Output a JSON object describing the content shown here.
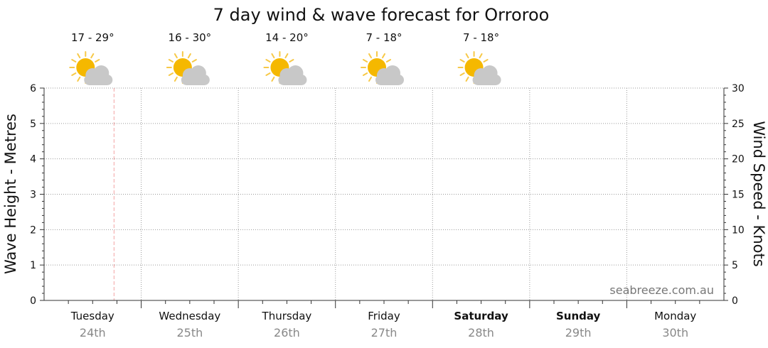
{
  "chart_data": {
    "type": "line",
    "title": "7 day wind & wave forecast for Orroroo",
    "ylabel_left": "Wave Height - Metres",
    "ylabel_right": "Wind Speed - Knots",
    "ylim_left": [
      0,
      6
    ],
    "ylim_right": [
      0,
      30
    ],
    "yticks_left": [
      "0",
      "1",
      "2",
      "3",
      "4",
      "5",
      "6"
    ],
    "yticks_right": [
      "0",
      "5",
      "10",
      "15",
      "20",
      "25",
      "30"
    ],
    "grid": true,
    "days": [
      {
        "name": "Tuesday",
        "date": "24th",
        "weekend": false,
        "temp": "17 - 29°",
        "icon": "sun-cloud-icon"
      },
      {
        "name": "Wednesday",
        "date": "25th",
        "weekend": false,
        "temp": "16 - 30°",
        "icon": "sun-cloud-icon"
      },
      {
        "name": "Thursday",
        "date": "26th",
        "weekend": false,
        "temp": "14 - 20°",
        "icon": "sun-cloud-icon"
      },
      {
        "name": "Friday",
        "date": "27th",
        "weekend": false,
        "temp": "7 - 18°",
        "icon": "sun-cloud-icon"
      },
      {
        "name": "Saturday",
        "date": "28th",
        "weekend": true,
        "temp": "7 - 18°",
        "icon": "sun-cloud-icon"
      },
      {
        "name": "Sunday",
        "date": "29th",
        "weekend": true,
        "temp": "",
        "icon": ""
      },
      {
        "name": "Monday",
        "date": "30th",
        "weekend": false,
        "temp": "",
        "icon": ""
      }
    ],
    "now_marker_day_fraction": 0.72,
    "series": []
  },
  "watermark": "seabreeze.com.au",
  "colors": {
    "grid": "#9a9a9a",
    "now_marker": "#f4a3a3",
    "sun": "#f5b800",
    "sun_ray": "#f7c948",
    "cloud": "#c8c8c8"
  }
}
